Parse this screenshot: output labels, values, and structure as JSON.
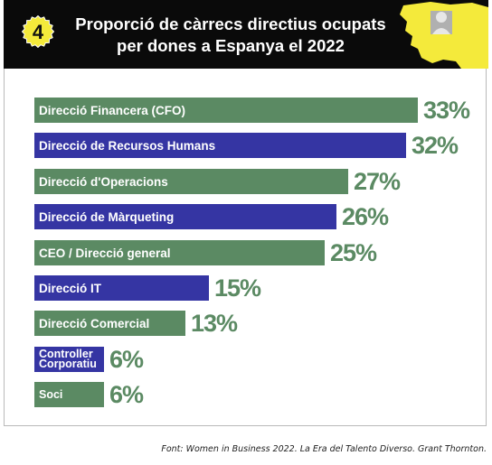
{
  "header": {
    "badge_number": "4",
    "title_line1": "Proporció de càrrecs directius ocupats",
    "title_line2": "per dones a Espanya el 2022"
  },
  "colors": {
    "green": "#5b8a63",
    "blue": "#3535a3",
    "header_bg": "#0a0a0a",
    "badge_fill": "#f4ea3b",
    "map_fill": "#f4ea3b",
    "avatar": "#b0b0b0"
  },
  "icons": {
    "map": "spain-map-icon",
    "avatar": "woman-avatar-icon"
  },
  "chart_data": {
    "type": "bar",
    "orientation": "horizontal",
    "title": "Proporció de càrrecs directius ocupats per dones a Espanya el 2022",
    "categories": [
      "Direcció Financera (CFO)",
      "Direcció de Recursos Humans",
      "Direcció d'Operacions",
      "Direcció de Màrqueting",
      "CEO / Direcció general",
      "Direcció IT",
      "Direcció Comercial",
      "Controller Corporatiu",
      "Soci"
    ],
    "values": [
      33,
      32,
      27,
      26,
      25,
      15,
      13,
      6,
      6
    ],
    "value_labels": [
      "33%",
      "32%",
      "27%",
      "26%",
      "25%",
      "15%",
      "13%",
      "6%",
      "6%"
    ],
    "bar_colors": [
      "green",
      "blue",
      "green",
      "blue",
      "green",
      "blue",
      "green",
      "blue",
      "green"
    ],
    "xlim": [
      0,
      33
    ],
    "grid": false,
    "legend": "none"
  },
  "source": "Font: Women in Business 2022. La Era del Talento Diverso. Grant Thornton."
}
